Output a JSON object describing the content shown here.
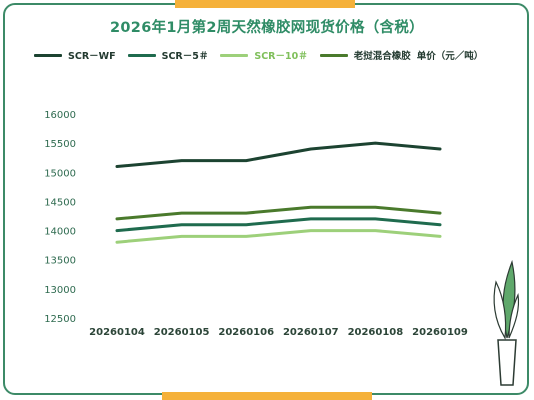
{
  "title": "2026年1月第2周天然橡胶网现货价格（含税）",
  "colors": {
    "frame": "#3c8a67",
    "accent": "#f5b13a",
    "title": "#2f8c66"
  },
  "chart_data": {
    "type": "line",
    "title": "2026年1月第2周天然橡胶网现货价格（含税）",
    "categories": [
      "20260104",
      "20260105",
      "20260106",
      "20260107",
      "20260108",
      "20260109"
    ],
    "ylim": [
      12500,
      16000
    ],
    "yticks": [
      "16000",
      "15500",
      "15000",
      "14500",
      "14000",
      "13500",
      "13000",
      "12500"
    ],
    "grid": false,
    "legend_position": "top",
    "unit_label": "单价（元／吨）",
    "series": [
      {
        "name": "SCR－WF",
        "color": "#1c4331",
        "values": [
          15100,
          15200,
          15200,
          15400,
          15500,
          15400
        ]
      },
      {
        "name": "SCR－5＃",
        "color": "#1f6b4e",
        "values": [
          14000,
          14100,
          14100,
          14200,
          14200,
          14100
        ]
      },
      {
        "name": "SCR－10＃",
        "color": "#9dd07a",
        "values": [
          13800,
          13900,
          13900,
          14000,
          14000,
          13900
        ]
      },
      {
        "name": "老挝混合橡胶",
        "color": "#4a7a2c",
        "values": [
          14200,
          14300,
          14300,
          14400,
          14400,
          14300
        ]
      }
    ]
  }
}
